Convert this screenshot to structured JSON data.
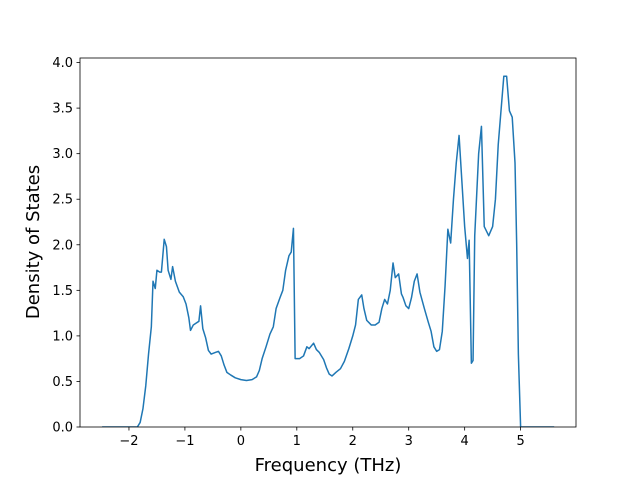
{
  "chart_data": {
    "type": "line",
    "xlabel": "Frequency (THz)",
    "ylabel": "Density of States",
    "x": [
      -2.48,
      -1.85,
      -1.8,
      -1.75,
      -1.7,
      -1.65,
      -1.6,
      -1.57,
      -1.53,
      -1.5,
      -1.45,
      -1.42,
      -1.37,
      -1.33,
      -1.3,
      -1.25,
      -1.22,
      -1.17,
      -1.1,
      -1.03,
      -0.98,
      -0.93,
      -0.9,
      -0.85,
      -0.8,
      -0.75,
      -0.72,
      -0.68,
      -0.63,
      -0.58,
      -0.53,
      -0.45,
      -0.4,
      -0.35,
      -0.3,
      -0.25,
      -0.18,
      -0.1,
      0,
      0.1,
      0.2,
      0.28,
      0.33,
      0.38,
      0.45,
      0.52,
      0.58,
      0.63,
      0.7,
      0.75,
      0.8,
      0.86,
      0.9,
      0.94,
      0.97,
      1.05,
      1.12,
      1.18,
      1.22,
      1.3,
      1.35,
      1.4,
      1.48,
      1.53,
      1.58,
      1.63,
      1.7,
      1.78,
      1.85,
      1.93,
      2.0,
      2.05,
      2.1,
      2.16,
      2.2,
      2.25,
      2.33,
      2.4,
      2.47,
      2.52,
      2.57,
      2.62,
      2.67,
      2.72,
      2.76,
      2.82,
      2.87,
      2.9,
      2.95,
      3.0,
      3.05,
      3.1,
      3.15,
      3.2,
      3.28,
      3.35,
      3.4,
      3.45,
      3.5,
      3.55,
      3.6,
      3.65,
      3.7,
      3.75,
      3.8,
      3.85,
      3.9,
      3.95,
      4.0,
      4.05,
      4.08,
      4.12,
      4.15,
      4.18,
      4.25,
      4.3,
      4.35,
      4.43,
      4.5,
      4.55,
      4.6,
      4.7,
      4.75,
      4.8,
      4.85,
      4.9,
      4.93,
      4.96,
      5.0,
      5.6
    ],
    "series": [
      {
        "color": "#1f77b4",
        "values": [
          0,
          0,
          0.05,
          0.2,
          0.45,
          0.8,
          1.1,
          1.6,
          1.52,
          1.72,
          1.7,
          1.7,
          2.06,
          1.98,
          1.72,
          1.62,
          1.76,
          1.6,
          1.48,
          1.43,
          1.35,
          1.2,
          1.06,
          1.12,
          1.14,
          1.16,
          1.33,
          1.08,
          0.98,
          0.84,
          0.8,
          0.82,
          0.83,
          0.78,
          0.68,
          0.6,
          0.57,
          0.54,
          0.52,
          0.51,
          0.52,
          0.55,
          0.62,
          0.75,
          0.88,
          1.02,
          1.1,
          1.3,
          1.42,
          1.5,
          1.72,
          1.88,
          1.92,
          2.18,
          0.75,
          0.75,
          0.78,
          0.88,
          0.86,
          0.92,
          0.85,
          0.82,
          0.74,
          0.65,
          0.58,
          0.56,
          0.6,
          0.64,
          0.72,
          0.86,
          1.0,
          1.12,
          1.4,
          1.45,
          1.3,
          1.17,
          1.12,
          1.12,
          1.15,
          1.3,
          1.4,
          1.35,
          1.5,
          1.8,
          1.64,
          1.68,
          1.46,
          1.42,
          1.33,
          1.3,
          1.42,
          1.6,
          1.68,
          1.48,
          1.3,
          1.15,
          1.05,
          0.88,
          0.83,
          0.85,
          1.05,
          1.55,
          2.17,
          2.02,
          2.5,
          2.9,
          3.2,
          2.7,
          2.2,
          1.85,
          2.05,
          0.7,
          0.73,
          2.1,
          3.0,
          3.3,
          2.2,
          2.1,
          2.2,
          2.5,
          3.1,
          3.85,
          3.85,
          3.47,
          3.4,
          2.9,
          2.0,
          0.8,
          0,
          0
        ]
      }
    ],
    "xlim": [
      -2.875,
      5.99
    ],
    "ylim": [
      0,
      4.05
    ],
    "xticks": [
      {
        "value": -2,
        "label": "−2"
      },
      {
        "value": -1,
        "label": "−1"
      },
      0,
      1,
      2,
      3,
      4,
      5
    ],
    "yticks": [
      {
        "value": 0,
        "label": "0.0"
      },
      0.5,
      {
        "value": 1,
        "label": "1.0"
      },
      1.5,
      {
        "value": 2,
        "label": "2.0"
      },
      2.5,
      {
        "value": 3,
        "label": "3.0"
      },
      3.5,
      {
        "value": 4,
        "label": "4.0"
      }
    ]
  }
}
